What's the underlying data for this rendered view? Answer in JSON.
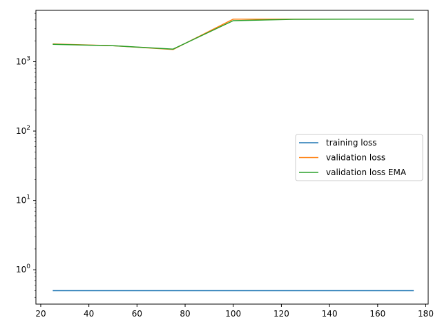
{
  "chart_data": {
    "type": "line",
    "title": "",
    "xlabel": "",
    "ylabel": "",
    "yscale": "log",
    "xlim": [
      18,
      181
    ],
    "ylim": [
      0.32,
      5500
    ],
    "x_ticks": [
      20,
      40,
      60,
      80,
      100,
      120,
      140,
      160,
      180
    ],
    "y_ticks": [
      {
        "value": 1,
        "label_base": "10",
        "label_exp": "0"
      },
      {
        "value": 10,
        "label_base": "10",
        "label_exp": "1"
      },
      {
        "value": 100,
        "label_base": "10",
        "label_exp": "2"
      },
      {
        "value": 1000,
        "label_base": "10",
        "label_exp": "3"
      }
    ],
    "legend_position": "center-right",
    "series": [
      {
        "name": "training loss",
        "color": "#1f77b4",
        "x": [
          25,
          50,
          75,
          100,
          125,
          150,
          175
        ],
        "y": [
          0.5,
          0.5,
          0.5,
          0.5,
          0.5,
          0.5,
          0.5
        ]
      },
      {
        "name": "validation loss",
        "color": "#ff7f0e",
        "x": [
          25,
          50,
          75,
          100,
          125,
          150,
          175
        ],
        "y": [
          1800,
          1700,
          1500,
          4100,
          4100,
          4100,
          4100
        ]
      },
      {
        "name": "validation loss EMA",
        "color": "#2ca02c",
        "x": [
          25,
          50,
          75,
          100,
          125,
          150,
          175
        ],
        "y": [
          1780,
          1700,
          1520,
          3900,
          4080,
          4100,
          4100
        ]
      }
    ]
  }
}
